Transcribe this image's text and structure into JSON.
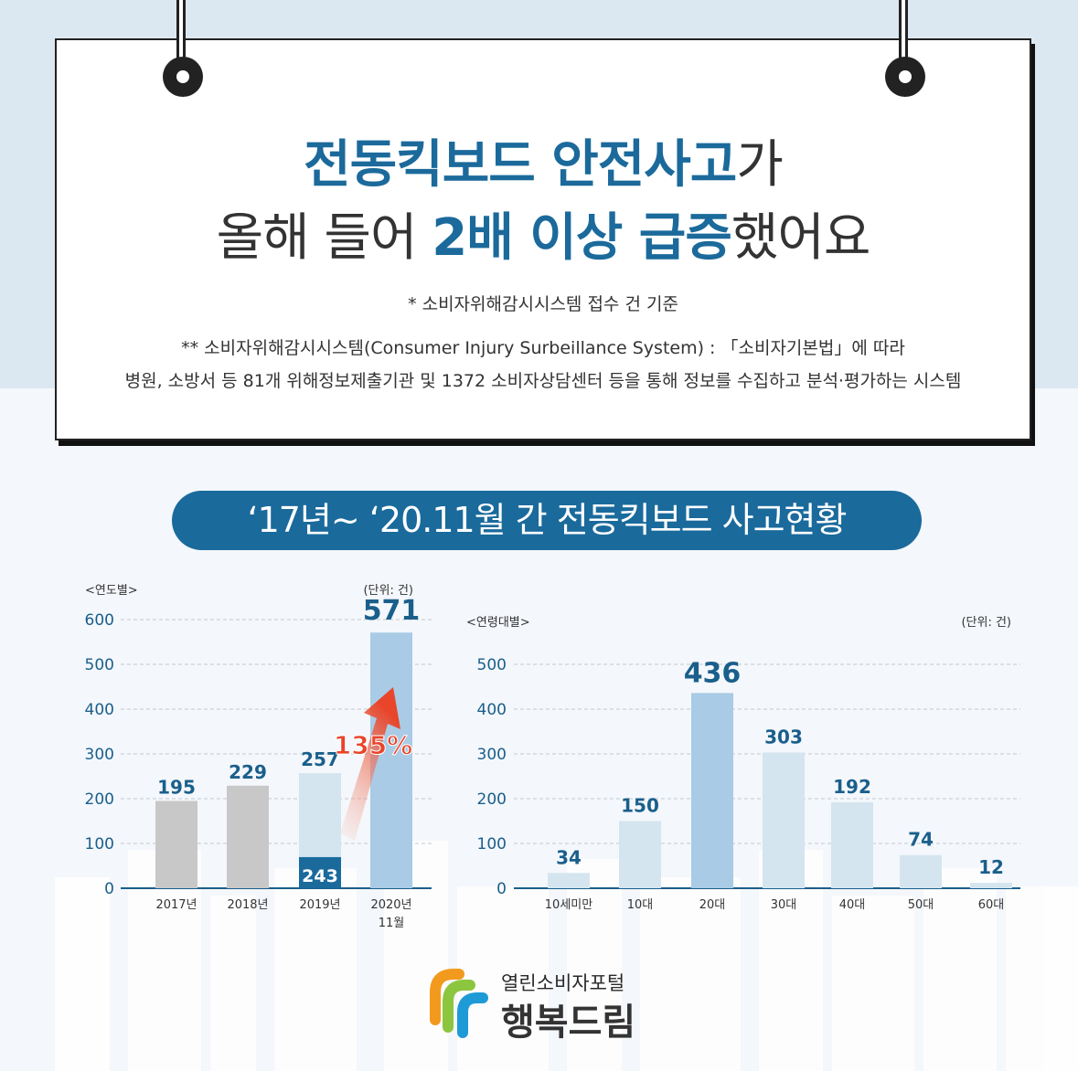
{
  "header": {
    "line1_highlight": "전동킥보드 안전사고",
    "line1_tail": "가",
    "line2_head": "올해 들어 ",
    "line2_highlight": "2배 이상 급증",
    "line2_tail": "했어요",
    "note1": "* 소비자위해감시시스템 접수 건 기준",
    "note2": "** 소비자위해감시시스템(Consumer Injury Surbeillance System) : 「소비자기본법」에 따라",
    "note3": "병원, 소방서 등 81개 위해정보제출기관 및 1372 소비자상담센터 등을 통해 정보를 수집하고 분석·평가하는 시스템"
  },
  "section_title": "‘17년~ ‘20.11월 간 전동킥보드 사고현황",
  "colors": {
    "primary": "#1a6a9c",
    "grey_bar": "#c8c8c8",
    "light_bar": "#d4e5ef",
    "highlight_bar": "#a9cbe5",
    "arrow": "#e8452a"
  },
  "chart_data": [
    {
      "type": "bar",
      "title": "<연도별>",
      "unit_label": "(단위: 건)",
      "categories": [
        "2017년",
        "2018년",
        "2019년",
        "2020년 11월"
      ],
      "values": [
        195,
        229,
        257,
        571
      ],
      "inner_bar": {
        "category": "2019년",
        "value": 243
      },
      "annotation": "135%",
      "ylim": [
        0,
        600
      ],
      "yticks": [
        0,
        100,
        200,
        300,
        400,
        500,
        600
      ],
      "grid": true
    },
    {
      "type": "bar",
      "title": "<연령대별>",
      "unit_label": "(단위: 건)",
      "categories": [
        "10세미만",
        "10대",
        "20대",
        "30대",
        "40대",
        "50대",
        "60대"
      ],
      "values": [
        34,
        150,
        436,
        303,
        192,
        74,
        12
      ],
      "ylim": [
        0,
        500
      ],
      "yticks": [
        0,
        100,
        200,
        300,
        400,
        500
      ],
      "grid": true
    }
  ],
  "logo": {
    "top": "열린소비자포털",
    "bottom": "행복드림"
  }
}
